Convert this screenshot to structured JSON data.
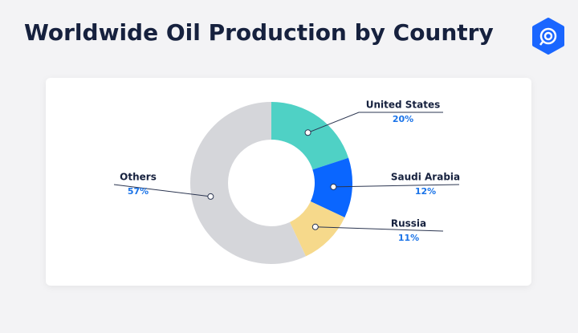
{
  "chart_data": {
    "type": "pie",
    "title": "Worldwide Oil Production by Country",
    "categories": [
      "United States",
      "Saudi Arabia",
      "Russia",
      "Others"
    ],
    "values": [
      20,
      12,
      11,
      57
    ],
    "value_labels": [
      "20%",
      "12%",
      "11%",
      "57%"
    ],
    "colors": [
      "#4fd1c5",
      "#0a66ff",
      "#f6d98b",
      "#d5d6da"
    ],
    "donut": true
  }
}
